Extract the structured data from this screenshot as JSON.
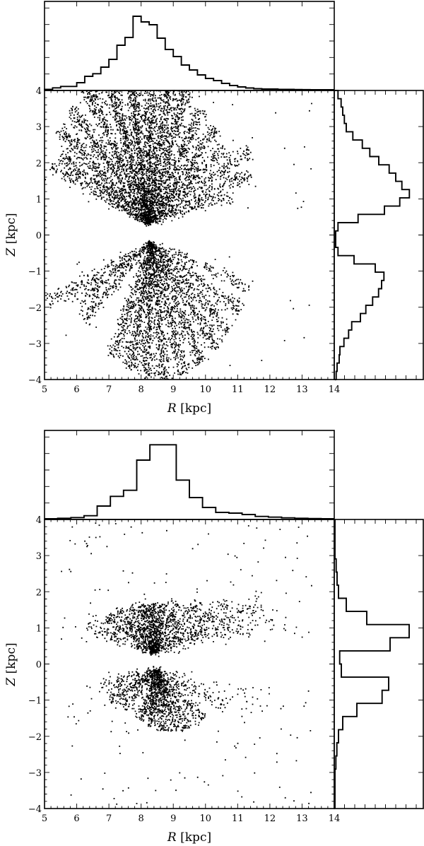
{
  "chart_data": [
    {
      "type": "scatter",
      "panel": "top",
      "title": "",
      "xlabel": "R [kpc]",
      "xlabel_var": "R",
      "xlabel_unit": "[kpc]",
      "ylabel": "Z [kpc]",
      "ylabel_var": "Z",
      "ylabel_unit": "[kpc]",
      "xlim": [
        5,
        14
      ],
      "ylim": [
        -4,
        4
      ],
      "xticks": [
        5,
        6,
        7,
        8,
        9,
        10,
        11,
        12,
        13,
        14
      ],
      "yticks": [
        -4,
        -3,
        -2,
        -1,
        0,
        1,
        2,
        3,
        4
      ],
      "grid": false,
      "marker_color": "#000000",
      "scatter_description": "Dense radial rays of stars fanning out from about (R=8.0-8.5, Z=+/-0.3); upper cone Z 0.3-4, lower cone Z -0.2 to -4",
      "scatter_model": {
        "seed": 11,
        "apex_upper": [
          8.2,
          0.3
        ],
        "apex_lower": [
          8.3,
          -0.2
        ],
        "rays_upper": [
          {
            "angle": 152,
            "len": 3.4,
            "n": 160
          },
          {
            "angle": 145,
            "len": 3.3,
            "n": 260
          },
          {
            "angle": 136,
            "len": 3.8,
            "n": 320
          },
          {
            "angle": 126,
            "len": 4.0,
            "n": 360
          },
          {
            "angle": 116,
            "len": 4.2,
            "n": 420
          },
          {
            "angle": 106,
            "len": 4.0,
            "n": 520
          },
          {
            "angle": 97,
            "len": 4.0,
            "n": 520
          },
          {
            "angle": 88,
            "len": 3.9,
            "n": 480
          },
          {
            "angle": 80,
            "len": 3.9,
            "n": 440
          },
          {
            "angle": 72,
            "len": 3.9,
            "n": 380
          },
          {
            "angle": 62,
            "len": 3.6,
            "n": 330
          },
          {
            "angle": 52,
            "len": 3.4,
            "n": 280
          },
          {
            "angle": 42,
            "len": 3.2,
            "n": 240
          },
          {
            "angle": 33,
            "len": 3.8,
            "n": 220
          },
          {
            "angle": 24,
            "len": 3.5,
            "n": 200
          },
          {
            "angle": 17,
            "len": 2.8,
            "n": 120
          }
        ],
        "rays_lower": [
          {
            "angle": 208,
            "len": 3.6,
            "n": 170
          },
          {
            "angle": 216,
            "len": 2.8,
            "n": 150
          },
          {
            "angle": 226,
            "len": 3.0,
            "n": 170
          },
          {
            "angle": 250,
            "len": 3.4,
            "n": 260
          },
          {
            "angle": 260,
            "len": 3.6,
            "n": 320
          },
          {
            "angle": 268,
            "len": 3.8,
            "n": 360
          },
          {
            "angle": 277,
            "len": 3.9,
            "n": 340
          },
          {
            "angle": 286,
            "len": 3.8,
            "n": 300
          },
          {
            "angle": 295,
            "len": 3.7,
            "n": 280
          },
          {
            "angle": 305,
            "len": 3.6,
            "n": 260
          },
          {
            "angle": 315,
            "len": 3.5,
            "n": 230
          },
          {
            "angle": 326,
            "len": 3.4,
            "n": 180
          },
          {
            "angle": 338,
            "len": 3.4,
            "n": 120
          }
        ],
        "spread": 0.07,
        "outliers": 60
      }
    },
    {
      "type": "bar",
      "panel": "top-marginal-R",
      "orientation": "vertical",
      "xlabel": "R [kpc]",
      "xlim": [
        5,
        14
      ],
      "bin_edges_start": 5.0,
      "bin_width": 0.25,
      "values": [
        0.5,
        2.7,
        4.7,
        4.7,
        10,
        19,
        22.7,
        32,
        43,
        63,
        74,
        104,
        96,
        92,
        73,
        57,
        47,
        35,
        28,
        21,
        16,
        13,
        9,
        6,
        4,
        2.5,
        1.5,
        1,
        1,
        0.6,
        0.5,
        0.3,
        0.2,
        0.1,
        0,
        0
      ],
      "ylim": [
        0,
        125
      ],
      "value_units": "relative (pixel height, max=125)"
    },
    {
      "type": "bar",
      "panel": "top-marginal-Z",
      "orientation": "horizontal",
      "ylabel": "Z [kpc]",
      "ylim": [
        -4,
        4
      ],
      "bin_edges_start": 4.0,
      "bin_width": -0.2286,
      "values": [
        4.3,
        8.7,
        11,
        13.3,
        16,
        25.3,
        38.7,
        49.3,
        62,
        76.7,
        86,
        94.7,
        105.3,
        91.7,
        70,
        32.7,
        4.3,
        1,
        1,
        4.3,
        27,
        57,
        69.3,
        66,
        61.7,
        53.3,
        43.7,
        36,
        23.7,
        19.3,
        12.7,
        7,
        6,
        3,
        1.7,
        1
      ],
      "xlim": [
        0,
        126
      ],
      "value_units": "relative (pixel width, max=126)"
    },
    {
      "type": "scatter",
      "panel": "bottom",
      "title": "",
      "xlabel": "R [kpc]",
      "xlabel_var": "R",
      "xlabel_unit": "[kpc]",
      "ylabel": "Z [kpc]",
      "ylabel_var": "Z",
      "ylabel_unit": "[kpc]",
      "xlim": [
        5,
        14
      ],
      "ylim": [
        -4,
        4
      ],
      "xticks": [
        5,
        6,
        7,
        8,
        9,
        10,
        11,
        12,
        13,
        14
      ],
      "yticks": [
        -4,
        -3,
        -2,
        -1,
        0,
        1,
        2,
        3,
        4
      ],
      "grid": false,
      "marker_color": "#000000",
      "scatter_description": "Sparser fan of stars concentrated at |Z| 0.2-1.5, R 6.5-12, with scattered outliers up to |Z| ~3.9",
      "scatter_model": {
        "seed": 29,
        "apex_upper": [
          8.4,
          0.3
        ],
        "apex_lower": [
          8.5,
          -0.15
        ],
        "rays_upper": [
          {
            "angle": 160,
            "len": 2.2,
            "n": 110
          },
          {
            "angle": 148,
            "len": 1.8,
            "n": 130
          },
          {
            "angle": 135,
            "len": 1.7,
            "n": 140
          },
          {
            "angle": 120,
            "len": 1.5,
            "n": 150
          },
          {
            "angle": 105,
            "len": 1.4,
            "n": 170
          },
          {
            "angle": 92,
            "len": 1.4,
            "n": 170
          },
          {
            "angle": 78,
            "len": 1.4,
            "n": 150
          },
          {
            "angle": 62,
            "len": 1.6,
            "n": 140
          },
          {
            "angle": 45,
            "len": 2.0,
            "n": 130
          },
          {
            "angle": 32,
            "len": 2.7,
            "n": 150
          },
          {
            "angle": 22,
            "len": 3.6,
            "n": 170
          },
          {
            "angle": 14,
            "len": 4.0,
            "n": 100
          }
        ],
        "rays_lower": [
          {
            "angle": 195,
            "len": 1.8,
            "n": 90
          },
          {
            "angle": 210,
            "len": 1.7,
            "n": 140
          },
          {
            "angle": 225,
            "len": 1.5,
            "n": 120
          },
          {
            "angle": 250,
            "len": 1.5,
            "n": 150
          },
          {
            "angle": 262,
            "len": 1.6,
            "n": 160
          },
          {
            "angle": 275,
            "len": 1.7,
            "n": 180
          },
          {
            "angle": 288,
            "len": 1.8,
            "n": 170
          },
          {
            "angle": 300,
            "len": 1.9,
            "n": 160
          },
          {
            "angle": 315,
            "len": 2.0,
            "n": 130
          },
          {
            "angle": 335,
            "len": 2.4,
            "n": 80
          },
          {
            "angle": 345,
            "len": 3.4,
            "n": 40
          }
        ],
        "spread": 0.09,
        "outliers": 220
      }
    },
    {
      "type": "bar",
      "panel": "bottom-marginal-R",
      "orientation": "vertical",
      "xlabel": "R [kpc]",
      "xlim": [
        5,
        14
      ],
      "bin_edges_start": 5.0,
      "bin_width": 0.4091,
      "values": [
        0,
        0.7,
        1.7,
        4.3,
        18,
        31.7,
        40.3,
        83,
        104.7,
        104.7,
        54.7,
        30,
        16,
        9,
        8,
        6,
        3.3,
        2.3,
        1.3,
        0.7,
        0.3,
        0
      ],
      "ylim": [
        0,
        126
      ],
      "value_units": "relative (pixel height, max=126)"
    },
    {
      "type": "bar",
      "panel": "bottom-marginal-Z",
      "orientation": "horizontal",
      "ylabel": "Z [kpc]",
      "ylim": [
        -4,
        4
      ],
      "bin_edges_start": 4.0,
      "bin_width": -0.3636,
      "values": [
        0,
        0,
        0,
        1.7,
        3,
        5,
        16,
        45,
        105,
        78,
        6.7,
        9,
        76,
        66.7,
        31,
        11,
        5,
        2.7,
        1.3,
        0,
        0,
        0
      ],
      "xlim": [
        0,
        126
      ],
      "value_units": "relative (pixel width, max=126)"
    }
  ],
  "labels": {
    "top": {
      "xlabel_var": "R",
      "xlabel_unit": " [kpc]",
      "ylabel_var": "Z",
      "ylabel_unit": " [kpc]"
    },
    "bottom": {
      "xlabel_var": "R",
      "xlabel_unit": " [kpc]",
      "ylabel_var": "Z",
      "ylabel_unit": " [kpc]"
    }
  }
}
